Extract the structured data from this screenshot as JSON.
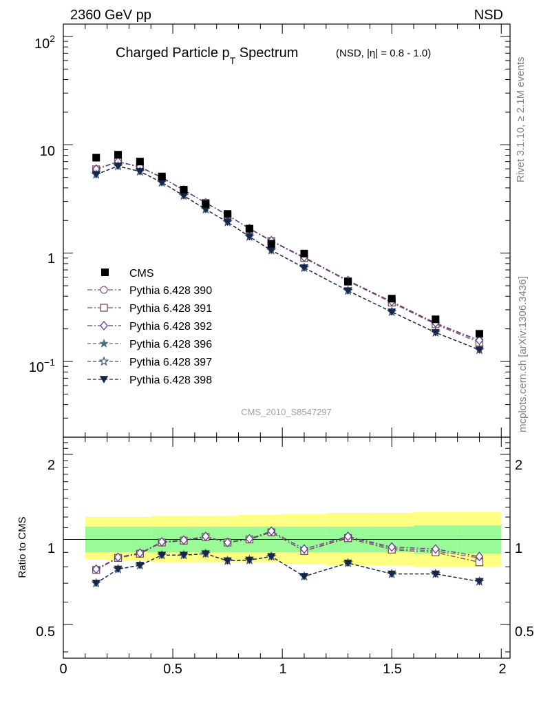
{
  "header": {
    "left": "2360 GeV pp",
    "right": "NSD",
    "title_main_a": "Charged Particle p",
    "title_main_sub": "T",
    "title_main_b": " Spectrum",
    "title_extra": "(NSD, |η| = 0.8 - 1.0)",
    "analysis_id": "CMS_2010_S8547297",
    "side_text_top": "Rivet 3.1.10, ≥ 2.1M events",
    "side_text_bottom": "mcplots.cern.ch [arXiv:1306.3436]"
  },
  "ratio_ylabel": "Ratio to CMS",
  "upper_ytick_labels": [
    "10^-1",
    "1",
    "10",
    "10^2"
  ],
  "ratio_ytick_labels": [
    "0.5",
    "1",
    "2"
  ],
  "xtick_labels": [
    "0",
    "0.5",
    "1",
    "1.5",
    "2"
  ],
  "chart_data": {
    "type": "scatter",
    "x": [
      0.15,
      0.25,
      0.35,
      0.45,
      0.55,
      0.65,
      0.75,
      0.85,
      0.95,
      1.1,
      1.3,
      1.5,
      1.7,
      1.9
    ],
    "bin_edges": [
      0.1,
      0.2,
      0.3,
      0.4,
      0.5,
      0.6,
      0.7,
      0.8,
      0.9,
      1.0,
      1.2,
      1.4,
      1.6,
      1.8,
      2.0
    ],
    "xlim": [
      0,
      2.04
    ],
    "upper_ylim": [
      0.02,
      130
    ],
    "upper_yscale": "log",
    "ratio_ylim": [
      0.38,
      2.3
    ],
    "ratio_yscale": "log",
    "legend_position": "middle-left",
    "data": {
      "name": "CMS",
      "values": [
        7.6,
        8.1,
        7.0,
        5.1,
        3.85,
        2.85,
        2.3,
        1.68,
        1.22,
        0.99,
        0.545,
        0.38,
        0.245,
        0.18
      ]
    },
    "series": [
      {
        "name": "Pythia 6.428 390",
        "marker": "circle",
        "color": "#8b4f86",
        "dash": "7,3,2,3",
        "ratio": [
          0.78,
          0.86,
          0.89,
          0.975,
          0.99,
          1.02,
          0.98,
          1.0,
          1.06,
          0.91,
          1.02,
          0.93,
          0.91,
          0.86
        ]
      },
      {
        "name": "Pythia 6.428 391",
        "marker": "square",
        "color": "#7a4a50",
        "dash": "7,3,2,3",
        "ratio": [
          0.78,
          0.86,
          0.89,
          0.975,
          0.99,
          1.02,
          0.975,
          1.0,
          1.06,
          0.91,
          1.01,
          0.92,
          0.9,
          0.83
        ]
      },
      {
        "name": "Pythia 6.428 392",
        "marker": "diamond",
        "color": "#5b3e8f",
        "dash": "7,3,2,3",
        "ratio": [
          0.785,
          0.865,
          0.895,
          0.98,
          0.995,
          1.025,
          0.975,
          1.005,
          1.07,
          0.925,
          1.025,
          0.94,
          0.925,
          0.87
        ]
      },
      {
        "name": "Pythia 6.428 396",
        "marker": "star",
        "color": "#4d6e78",
        "dash": "5,3",
        "ratio": [
          0.7,
          0.785,
          0.81,
          0.88,
          0.88,
          0.89,
          0.84,
          0.845,
          0.87,
          0.74,
          0.825,
          0.755,
          0.755,
          0.71
        ]
      },
      {
        "name": "Pythia 6.428 397",
        "marker": "star-open",
        "color": "#33557a",
        "dash": "5,3",
        "ratio": [
          0.7,
          0.785,
          0.81,
          0.88,
          0.88,
          0.89,
          0.84,
          0.845,
          0.87,
          0.74,
          0.825,
          0.755,
          0.755,
          0.71
        ]
      },
      {
        "name": "Pythia 6.428 398",
        "marker": "triangle-down",
        "color": "#1a2648",
        "dash": "5,3",
        "ratio": [
          0.7,
          0.785,
          0.81,
          0.88,
          0.88,
          0.89,
          0.84,
          0.845,
          0.87,
          0.74,
          0.825,
          0.755,
          0.755,
          0.71
        ]
      }
    ],
    "uncertainty_bands": {
      "inner_green": [
        [
          0.9,
          1.11
        ],
        [
          0.9,
          1.11
        ],
        [
          0.9,
          1.11
        ],
        [
          0.9,
          1.11
        ],
        [
          0.9,
          1.11
        ],
        [
          0.9,
          1.11
        ],
        [
          0.9,
          1.11
        ],
        [
          0.9,
          1.11
        ],
        [
          0.9,
          1.11
        ],
        [
          0.9,
          1.11
        ],
        [
          0.9,
          1.11
        ],
        [
          0.9,
          1.11
        ],
        [
          0.89,
          1.12
        ],
        [
          0.89,
          1.12
        ]
      ],
      "outer_yellow": [
        [
          0.85,
          1.2
        ],
        [
          0.84,
          1.2
        ],
        [
          0.84,
          1.2
        ],
        [
          0.83,
          1.21
        ],
        [
          0.83,
          1.21
        ],
        [
          0.83,
          1.21
        ],
        [
          0.83,
          1.21
        ],
        [
          0.83,
          1.22
        ],
        [
          0.83,
          1.22
        ],
        [
          0.82,
          1.23
        ],
        [
          0.81,
          1.24
        ],
        [
          0.81,
          1.24
        ],
        [
          0.8,
          1.25
        ],
        [
          0.8,
          1.25
        ]
      ],
      "colors": {
        "inner": "#98fb98",
        "outer": "#ffff82"
      }
    }
  }
}
